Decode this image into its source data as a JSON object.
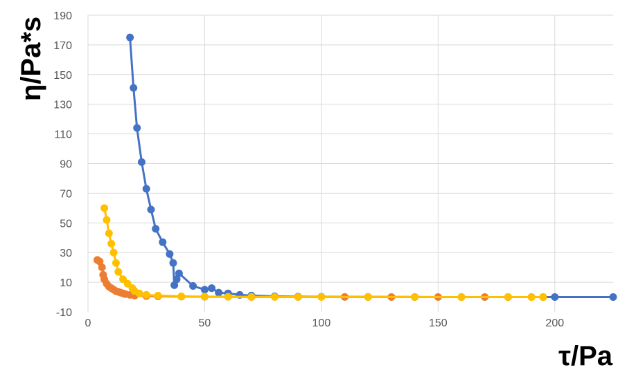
{
  "chart_data": {
    "type": "scatter",
    "title": "",
    "xlabel": "τ/Pa",
    "ylabel": "η/Pa*s",
    "xlim": [
      0,
      225
    ],
    "ylim": [
      -10,
      190
    ],
    "xticks": [
      "0",
      "50",
      "100",
      "150",
      "200"
    ],
    "yticks": [
      "190",
      "170",
      "150",
      "130",
      "110",
      "90",
      "70",
      "50",
      "30",
      "10",
      "-10"
    ],
    "grid": "vertical",
    "legend": "none",
    "series": [
      {
        "color": "#4472C4",
        "x": [
          18,
          19.5,
          21,
          23,
          25,
          27,
          29,
          32,
          35,
          36.5,
          37,
          38,
          39,
          45,
          50,
          53,
          56,
          60,
          65,
          70,
          80,
          90,
          100,
          120,
          140,
          160,
          180,
          200,
          225
        ],
        "y": [
          175,
          141,
          114,
          91,
          73,
          59,
          46,
          37,
          29,
          23,
          8,
          12,
          16,
          7.5,
          5,
          6,
          3,
          2.5,
          1.5,
          1,
          0.5,
          0.3,
          0.2,
          0.1,
          0.05,
          0.04,
          0.03,
          0.02,
          0.01
        ]
      },
      {
        "color": "#ED7D31",
        "x": [
          4,
          5,
          6,
          6.5,
          7,
          8,
          9,
          10,
          11,
          12,
          13,
          14,
          15,
          16,
          18,
          20,
          25,
          30,
          40,
          50,
          70,
          90,
          110,
          130,
          150,
          170,
          190,
          195
        ],
        "y": [
          25,
          24,
          20,
          15,
          12,
          9,
          7,
          6,
          5,
          4,
          3.5,
          3,
          2.5,
          2,
          1.5,
          1,
          0.7,
          0.5,
          0.3,
          0.2,
          0.1,
          0.08,
          0.06,
          0.05,
          0.04,
          0.03,
          0.02,
          0.01
        ]
      },
      {
        "color": "#FFC000",
        "x": [
          7,
          8,
          9,
          10,
          11,
          12,
          13,
          15,
          17,
          19,
          20,
          22,
          25,
          30,
          40,
          50,
          60,
          70,
          80,
          90,
          100,
          120,
          140,
          160,
          180,
          190,
          195
        ],
        "y": [
          60,
          52,
          43,
          36,
          30,
          23,
          17,
          12,
          9,
          6,
          4,
          2.5,
          1.5,
          1,
          0.5,
          0.3,
          0.2,
          0.15,
          0.1,
          0.08,
          0.06,
          0.05,
          0.04,
          0.03,
          0.02,
          0.01,
          0.01
        ]
      }
    ]
  }
}
